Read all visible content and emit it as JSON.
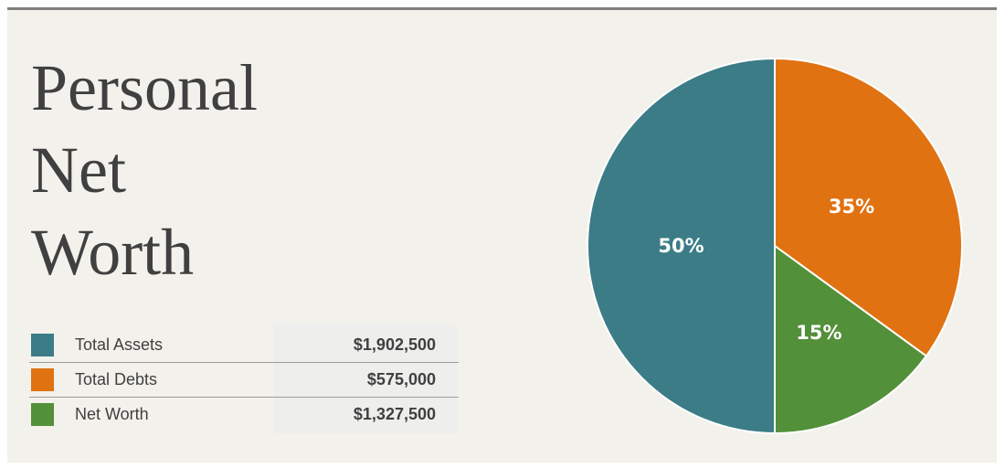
{
  "title": [
    "Personal",
    "Net",
    "Worth"
  ],
  "summary": [
    {
      "label": "Total Assets",
      "value": "$1,902,500",
      "color": "#3b7c87"
    },
    {
      "label": "Total Debts",
      "value": "$575,000",
      "color": "#e07212"
    },
    {
      "label": "Net Worth",
      "value": "$1,327,500",
      "color": "#53903a"
    }
  ],
  "chart_data": {
    "type": "pie",
    "categories": [
      "Total Assets",
      "Total Debts",
      "Net Worth"
    ],
    "values": [
      50,
      35,
      15
    ],
    "labels": [
      "50%",
      "35%",
      "15%"
    ],
    "colors": [
      "#3b7c87",
      "#e07212",
      "#53903a"
    ],
    "start": "top, assets clockwise from the bottom, net worth ending at the top"
  }
}
